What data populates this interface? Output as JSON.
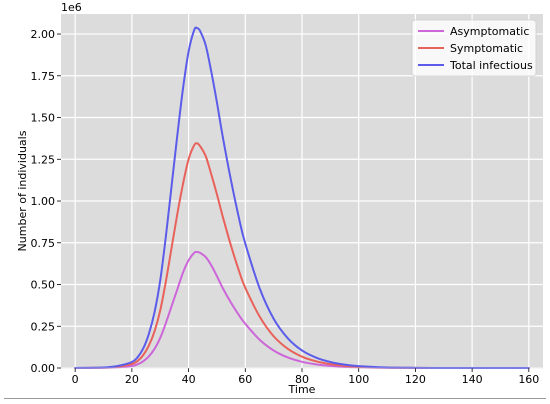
{
  "chart_data": {
    "type": "line",
    "title": "",
    "xlabel": "Time",
    "ylabel": "Number of individuals",
    "offset_text": "1e6",
    "xlim": [
      -5,
      165
    ],
    "ylim": [
      0,
      2.12
    ],
    "xticks": [
      0,
      20,
      40,
      60,
      80,
      100,
      120,
      140,
      160
    ],
    "yticks": [
      0.0,
      0.25,
      0.5,
      0.75,
      1.0,
      1.25,
      1.5,
      1.75,
      2.0
    ],
    "ytick_labels": [
      "0.00",
      "0.25",
      "0.50",
      "0.75",
      "1.00",
      "1.25",
      "1.50",
      "1.75",
      "2.00"
    ],
    "grid": true,
    "background": "#dcdcdc",
    "legend_position": "top-right",
    "x": [
      0,
      10,
      15,
      20,
      22,
      24,
      26,
      28,
      30,
      32,
      34,
      36,
      38,
      40,
      42,
      43,
      44,
      46,
      48,
      50,
      52,
      55,
      58,
      60,
      65,
      70,
      75,
      80,
      85,
      90,
      95,
      100,
      110,
      120,
      130,
      140,
      150,
      160
    ],
    "series": [
      {
        "name": "Asymptomatic",
        "color": "#cc66d9",
        "values": [
          0,
          0.001,
          0.004,
          0.012,
          0.022,
          0.04,
          0.07,
          0.115,
          0.18,
          0.27,
          0.37,
          0.47,
          0.57,
          0.645,
          0.69,
          0.695,
          0.69,
          0.665,
          0.615,
          0.55,
          0.48,
          0.39,
          0.31,
          0.265,
          0.17,
          0.105,
          0.063,
          0.037,
          0.022,
          0.013,
          0.007,
          0.004,
          0.001,
          0.0003,
          0.0001,
          0,
          0,
          0
        ]
      },
      {
        "name": "Symptomatic",
        "color": "#e8615a",
        "values": [
          0,
          0.002,
          0.008,
          0.024,
          0.042,
          0.077,
          0.135,
          0.22,
          0.345,
          0.52,
          0.72,
          0.92,
          1.1,
          1.25,
          1.335,
          1.345,
          1.33,
          1.27,
          1.16,
          1.04,
          0.91,
          0.73,
          0.57,
          0.48,
          0.31,
          0.19,
          0.115,
          0.068,
          0.04,
          0.023,
          0.013,
          0.007,
          0.002,
          0.0006,
          0.0002,
          0,
          0,
          0
        ]
      },
      {
        "name": "Total infectious",
        "color": "#5b5cea",
        "values": [
          0,
          0.003,
          0.012,
          0.036,
          0.064,
          0.117,
          0.205,
          0.335,
          0.525,
          0.79,
          1.09,
          1.39,
          1.67,
          1.895,
          2.025,
          2.035,
          2.02,
          1.935,
          1.775,
          1.59,
          1.39,
          1.12,
          0.88,
          0.745,
          0.48,
          0.295,
          0.178,
          0.105,
          0.062,
          0.036,
          0.02,
          0.011,
          0.003,
          0.0009,
          0.0003,
          0.0001,
          0,
          0
        ]
      }
    ]
  }
}
